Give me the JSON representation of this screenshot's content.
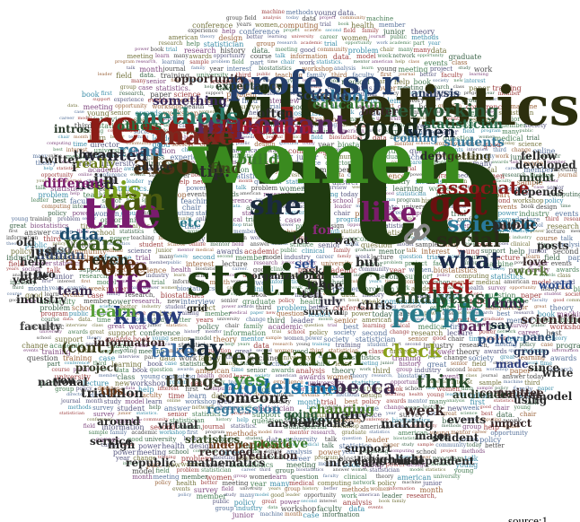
{
  "source_label": "source:1",
  "words": [
    {
      "t": "data",
      "c": "#1f3a10"
    },
    {
      "t": "women",
      "c": "#3a8a1f"
    },
    {
      "t": "will",
      "c": "#1f2f10"
    },
    {
      "t": "statistics",
      "c": "#2c2f0e"
    },
    {
      "t": "research",
      "c": "#8b1c16"
    },
    {
      "t": "statistical",
      "c": "#1f3c12"
    },
    {
      "t": "the",
      "c": "#7a1c6f"
    },
    {
      "t": "can",
      "c": "#4a5a10"
    },
    {
      "t": "get",
      "c": "#6a1010"
    },
    {
      "t": "she",
      "c": "#1b2a40"
    },
    {
      "t": "professor",
      "c": "#233d6a"
    },
    {
      "t": "important",
      "c": "#5a2b60"
    },
    {
      "t": "make",
      "c": "#7a2a20"
    },
    {
      "t": "also",
      "c": "#4d3316"
    },
    {
      "t": "career",
      "c": "#2c4a10"
    },
    {
      "t": "people",
      "c": "#2a7a8a"
    },
    {
      "t": "what",
      "c": "#1c2a4a"
    },
    {
      "t": "like",
      "c": "#7a1c6a"
    },
    {
      "t": "first",
      "c": "#9b1a1a"
    },
    {
      "t": "life",
      "c": "#6a1c6a"
    },
    {
      "t": "know",
      "c": "#273a7a"
    },
    {
      "t": "models",
      "c": "#1a6a9a"
    },
    {
      "t": "rebecca",
      "c": "#3d2a4a"
    },
    {
      "t": "great",
      "c": "#2b3d1a"
    },
    {
      "t": "good",
      "c": "#1c2b1a"
    },
    {
      "t": "science",
      "c": "#2a7a9a"
    },
    {
      "t": "methods",
      "c": "#2a7a6a"
    },
    {
      "t": "networking",
      "c": "#2c5a3a"
    },
    {
      "t": "social",
      "c": "#2a2a1a"
    },
    {
      "t": "practice",
      "c": "#1c6a3c"
    },
    {
      "t": "analytics",
      "c": "#2c4a30"
    },
    {
      "t": "time",
      "c": "#1a7ab0"
    },
    {
      "t": "think",
      "c": "#274a2a"
    },
    {
      "t": "day",
      "c": "#1a2a3a"
    },
    {
      "t": "one",
      "c": "#4a2c10"
    },
    {
      "t": "this",
      "c": "#7aa01c"
    },
    {
      "t": "years",
      "c": "#3a5a1c"
    },
    {
      "t": "article",
      "c": "#5a2c10"
    },
    {
      "t": "read",
      "c": "#3c7a9a"
    },
    {
      "t": "wanted",
      "c": "#2a2a3a"
    },
    {
      "t": "check",
      "c": "#8aa01a"
    },
    {
      "t": "associate",
      "c": "#8b1a1a"
    },
    {
      "t": "yes,",
      "c": "#3a8a3a"
    },
    {
      "t": "things",
      "c": "#3a3a2a"
    },
    {
      "t": "take",
      "c": "#3a6aa0"
    },
    {
      "t": "also,",
      "c": "#5a5a5a"
    },
    {
      "t": "data,",
      "c": "#1a4a6a"
    },
    {
      "t": "even",
      "c": "#2a2a1a"
    },
    {
      "t": "need",
      "c": "#2a2a3a"
    },
    {
      "t": "tip:",
      "c": "#2a2a2a"
    },
    {
      "t": "i'm",
      "c": "#2a2a2a"
    },
    {
      "t": "i'",
      "c": "#2a2a2a"
    },
    {
      "t": "for",
      "c": "#8a2a7a"
    },
    {
      "t": "build",
      "c": "#3a7a2a"
    },
    {
      "t": "find",
      "c": "#3a4a1a"
    },
    {
      "t": "skills",
      "c": "#8a1a1a"
    },
    {
      "t": "school",
      "c": "#3a7aa0"
    },
    {
      "t": "when",
      "c": "#1a2a3a"
    },
    {
      "t": "often",
      "c": "#2a2a2a"
    },
    {
      "t": "random",
      "c": "#a01a3a"
    },
    {
      "t": "team",
      "c": "#3a2a4a"
    },
    {
      "t": "learn",
      "c": "#5aa03a"
    },
    {
      "t": "(cont.)",
      "c": "#3a3a1a"
    },
    {
      "t": "regression",
      "c": "#3a7a9a"
    },
    {
      "t": "someone",
      "c": "#2a2a2a"
    },
    {
      "t": "however,",
      "c": "#2a3a2a"
    },
    {
      "t": "many",
      "c": "#2a2a2a"
    },
    {
      "t": "policy",
      "c": "#2a4a7a"
    },
    {
      "t": "part",
      "c": "#5a2a5a"
    },
    {
      "t": "say",
      "c": "#1a2a3a"
    },
    {
      "t": "scientific",
      "c": "#3a2a2a"
    },
    {
      "t": "work",
      "c": "#5a7a3a"
    },
    {
      "t": "love",
      "c": "#3a2a2a"
    },
    {
      "t": "world",
      "c": "#2a4a8a"
    },
    {
      "t": "chris",
      "c": "#2a2a2a"
    },
    {
      "t": "lenny",
      "c": "#3a2a4a"
    },
    {
      "t": "see",
      "c": "#2a2a2a"
    },
    {
      "t": "july",
      "c": "#2a2a3a"
    },
    {
      "t": "changing",
      "c": "#4a7a2a"
    },
    {
      "t": "going",
      "c": "#2a5a3a"
    },
    {
      "t": "distance",
      "c": "#2a2a2a"
    },
    {
      "t": "week",
      "c": "#3a2a2a"
    },
    {
      "t": "making",
      "c": "#2a2a2a"
    },
    {
      "t": "project",
      "c": "#3a3a2a"
    },
    {
      "t": "triathlon",
      "c": "#2a2a2a"
    },
    {
      "t": "industry",
      "c": "#2a2a2a"
    },
    {
      "t": "faculty",
      "c": "#3a3a3a"
    },
    {
      "t": "human",
      "c": "#3a4a6a"
    },
    {
      "t": "twitter",
      "c": "#2a2a2a"
    },
    {
      "t": "different",
      "c": "#7a1a6a"
    },
    {
      "t": "really",
      "c": "#6a7a1a"
    },
    {
      "t": "just",
      "c": "#2a2a2a"
    },
    {
      "t": "statistician",
      "c": "#2a6a4a"
    },
    {
      "t": "students",
      "c": "#3a7a9a"
    },
    {
      "t": "getting",
      "c": "#3a3a1a"
    },
    {
      "t": "education",
      "c": "#3a7a3a"
    },
    {
      "t": "analysis",
      "c": "#2a3a5a"
    },
    {
      "t": "coming",
      "c": "#3a7aa0"
    },
    {
      "t": "better",
      "c": "#3a2a2a"
    },
    {
      "t": "expectancy",
      "c": "#2a3a2a"
    },
    {
      "t": "etc",
      "c": "#2a7a8a"
    },
    {
      "t": "answer",
      "c": "#2a2a2a"
    },
    {
      "t": "recorded",
      "c": "#3a2a2a"
    },
    {
      "t": "information",
      "c": "#3a2a2a"
    },
    {
      "t": "intros",
      "c": "#2a3a2a"
    },
    {
      "t": "threads",
      "c": "#2a2a2a"
    },
    {
      "t": "others",
      "c": "#2a6a3a"
    },
    {
      "t": "something",
      "c": "#3a2a5a"
    },
    {
      "t": "opportunity",
      "c": "#3a2a2a"
    },
    {
      "t": "national",
      "c": "#2a2a2a"
    },
    {
      "t": "you",
      "c": "#2a2a2a"
    },
    {
      "t": "tips",
      "c": "#6a3a1a"
    },
    {
      "t": "model",
      "c": "#2a2a2a"
    },
    {
      "t": "federal",
      "c": "#3a2a2a"
    },
    {
      "t": "committee",
      "c": "#3a2a2a"
    },
    {
      "t": "group",
      "c": "#2a3a5a"
    },
    {
      "t": "panel",
      "c": "#2a4a6a"
    },
    {
      "t": "made",
      "c": "#2a3a7a"
    },
    {
      "t": "independence",
      "c": "#6a3a1a"
    },
    {
      "t": "mathematics",
      "c": "#2a2a2a"
    },
    {
      "t": "positive",
      "c": "#3a7a2a"
    },
    {
      "t": "support",
      "c": "#2a2a2a"
    },
    {
      "t": "highlight",
      "c": "#2a2a2a"
    },
    {
      "t": "independent",
      "c": "#2a2a2a"
    },
    {
      "t": "audience:",
      "c": "#2a3a2a"
    },
    {
      "t": "republic",
      "c": "#2a2a2a"
    },
    {
      "t": "prediction",
      "c": "#3a2a2a"
    },
    {
      "t": "statistics,",
      "c": "#3a4a2a"
    },
    {
      "t": "public",
      "c": "#2a2a2a"
    },
    {
      "t": "how",
      "c": "#2a2a2a"
    },
    {
      "t": "science,",
      "c": "#2a3a5a"
    },
    {
      "t": "grid",
      "c": "#2a2a2a"
    },
    {
      "t": "set",
      "c": "#2a4a8a"
    },
    {
      "t": "lot",
      "c": "#2a2a2a"
    },
    {
      "t": "way",
      "c": "#2a2a2a"
    },
    {
      "t": "but",
      "c": "#2a2a2a"
    },
    {
      "t": "job",
      "c": "#2a2a2a"
    },
    {
      "t": "tell",
      "c": "#2a2a2a"
    },
    {
      "t": "ask",
      "c": "#2a2a2a"
    },
    {
      "t": "using",
      "c": "#2a2a2a"
    },
    {
      "t": "impact",
      "c": "#3a2a2a"
    },
    {
      "t": "since",
      "c": "#2a2a2a"
    },
    {
      "t": "write",
      "c": "#2a2a2a"
    },
    {
      "t": "posts",
      "c": "#2a2a2a"
    },
    {
      "t": "might",
      "c": "#2a3a2a"
    },
    {
      "t": "depends",
      "c": "#2a2a2a"
    },
    {
      "t": "developed",
      "c": "#2a2a2a"
    },
    {
      "t": "dept.",
      "c": "#2a2a2a"
    },
    {
      "t": "fellow",
      "c": "#2a2a2a"
    },
    {
      "t": "little",
      "c": "#2a2a2a"
    },
    {
      "t": "advice",
      "c": "#2a2a2a"
    },
    {
      "t": "help",
      "c": "#2a2a2a"
    },
    {
      "t": "two",
      "c": "#2a2a2a"
    },
    {
      "t": "year",
      "c": "#2a2a2a"
    },
    {
      "t": "old",
      "c": "#2a2a2a"
    },
    {
      "t": "high",
      "c": "#2a2a2a"
    },
    {
      "t": "service",
      "c": "#2a2a2a"
    },
    {
      "t": "around",
      "c": "#2a2a2a"
    },
    {
      "t": "virtual",
      "c": "#2a2a2a"
    },
    {
      "t": "events",
      "c": "#2a2a2a"
    },
    {
      "t": "major",
      "c": "#2a2a2a"
    },
    {
      "t": "student",
      "c": "#2a2a2a"
    },
    {
      "t": "inference",
      "c": "#2a2a2a"
    },
    {
      "t": "department",
      "c": "#2a2a2a"
    },
    {
      "t": "survival",
      "c": "#2a2a2a"
    },
    {
      "t": "organizational",
      "c": "#2a2a2a"
    },
    {
      "t": "recommendations",
      "c": "#2a2a2a"
    },
    {
      "t": "talk",
      "c": "#2a2a2a"
    },
    {
      "t": "clear",
      "c": "#2a2a2a"
    }
  ],
  "background_words": [
    "data",
    "research",
    "statistics",
    "science",
    "women",
    "career",
    "help",
    "time",
    "work",
    "many",
    "part",
    "case",
    "learn",
    "talk",
    "group",
    "member",
    "public",
    "problem",
    "model",
    "training",
    "interest",
    "survey",
    "study",
    "meeting",
    "methods",
    "network",
    "school",
    "young",
    "field",
    "power",
    "statistician",
    "biostatistics",
    "graduate",
    "academic",
    "industry",
    "university",
    "analysis",
    "sample",
    "design",
    "theory",
    "computing",
    "project",
    "community",
    "faculty",
    "online",
    "learning",
    "machine",
    "policy",
    "health",
    "medical",
    "clinical",
    "trial",
    "experience",
    "society",
    "american",
    "journal",
    "conference",
    "workshop",
    "awards",
    "paper",
    "chair",
    "program",
    "director",
    "senior",
    "junior",
    "mentor",
    "teaching",
    "class",
    "course",
    "lecture",
    "student",
    "leader",
    "history",
    "events",
    "book",
    "family",
    "space",
    "support",
    "information",
    "question",
    "answer",
    "today",
    "week",
    "month",
    "year",
    "years",
    "first",
    "second",
    "third",
    "new",
    "change",
    "power",
    "great",
    "good",
    "best",
    "better",
    "interview",
    "opportunity",
    "statistics.",
    "data.",
    "women,",
    "career.",
    "research,"
  ],
  "link_icon": "link-chain-icon"
}
